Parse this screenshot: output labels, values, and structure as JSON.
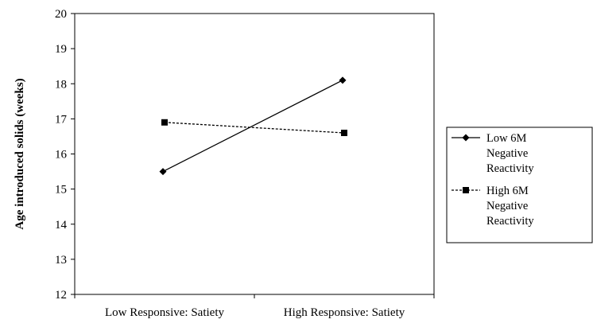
{
  "chart_data": {
    "type": "line",
    "categories": [
      "Low Responsive: Satiety",
      "High Responsive: Satiety"
    ],
    "ylabel": "Age introduced solids (weeks)",
    "xlabel": "",
    "ylim": [
      12,
      20
    ],
    "yticks": [
      12,
      13,
      14,
      15,
      16,
      17,
      18,
      19,
      20
    ],
    "grid": false,
    "legend_position": "right",
    "series": [
      {
        "name": [
          "Low 6M",
          "Negative",
          "Reactivity"
        ],
        "values": [
          15.5,
          18.1
        ],
        "marker": "diamond",
        "line": "solid"
      },
      {
        "name": [
          "High 6M",
          "Negative",
          "Reactivity"
        ],
        "values": [
          16.9,
          16.6
        ],
        "marker": "square",
        "line": "dashed"
      }
    ]
  }
}
